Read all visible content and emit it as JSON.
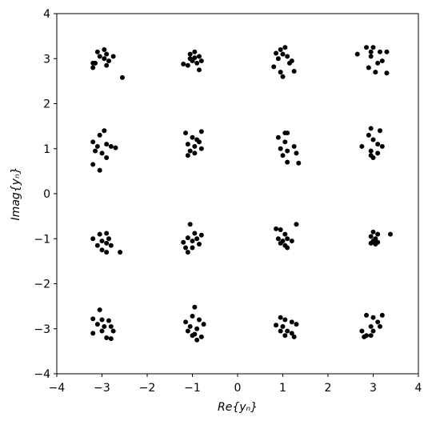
{
  "chart_data": {
    "type": "scatter",
    "xlabel": "Re{yₙ}",
    "ylabel": "Imag{yₙ}",
    "color": "#000000",
    "xlim": [
      -4,
      4
    ],
    "ylim": [
      -4,
      4
    ],
    "xticks": [
      {
        "value": -4,
        "label": "−4"
      },
      {
        "value": -3,
        "label": "−3"
      },
      {
        "value": -2,
        "label": "−2"
      },
      {
        "value": -1,
        "label": "−1"
      },
      0,
      1,
      2,
      3,
      4
    ],
    "yticks": [
      {
        "value": -4,
        "label": "−4"
      },
      {
        "value": -3,
        "label": "−3"
      },
      {
        "value": -2,
        "label": "−2"
      },
      {
        "value": -1,
        "label": "−1"
      },
      0,
      1,
      2,
      3,
      4
    ],
    "x": [
      -3.1,
      -2.95,
      -2.9,
      -3.2,
      -3.2,
      -2.85,
      -2.75,
      -2.95,
      -3.05,
      -2.9,
      -2.55,
      -3.15,
      -1.05,
      -0.95,
      -0.85,
      -1.1,
      -1.0,
      -0.9,
      -1.2,
      -0.8,
      -0.85,
      -1.05,
      -0.95,
      0.95,
      1.05,
      1.0,
      0.85,
      1.1,
      1.2,
      0.8,
      0.95,
      1.0,
      1.25,
      1.15,
      0.9,
      2.85,
      3.0,
      3.15,
      3.3,
      2.65,
      2.95,
      3.1,
      3.2,
      2.9,
      3.05,
      3.3,
      2.95,
      -3.2,
      -2.95,
      -3.05,
      -2.9,
      -3.1,
      -2.8,
      -2.7,
      -3.0,
      -2.9,
      -3.2,
      -3.05,
      -3.15,
      -1.15,
      -0.8,
      -1.0,
      -0.9,
      -1.1,
      -0.95,
      -1.05,
      -0.8,
      -1.1,
      -0.95,
      -0.85,
      1.05,
      1.1,
      0.9,
      1.05,
      1.25,
      0.95,
      1.1,
      1.3,
      1.0,
      1.1,
      1.35,
      2.95,
      3.15,
      2.9,
      3.0,
      3.1,
      2.75,
      3.2,
      2.95,
      3.1,
      3.0,
      2.95,
      -3.2,
      -3.05,
      -2.9,
      -2.85,
      -3.0,
      -2.9,
      -3.1,
      -2.8,
      -3.0,
      -2.9,
      -2.6,
      -1.05,
      -0.95,
      -0.8,
      -1.1,
      -0.9,
      -1.0,
      -1.2,
      -0.85,
      -1.15,
      -1.0,
      -1.1,
      0.85,
      0.95,
      1.3,
      1.05,
      0.9,
      1.0,
      1.1,
      1.2,
      0.95,
      1.05,
      1.1,
      3.0,
      3.1,
      3.38,
      2.95,
      3.05,
      3.0,
      3.1,
      2.95,
      3.05,
      -3.05,
      -3.2,
      -3.0,
      -2.85,
      -3.1,
      -2.95,
      -2.8,
      -3.0,
      -2.75,
      -3.2,
      -2.9,
      -2.8,
      -0.95,
      -1.0,
      -0.85,
      -1.15,
      -0.75,
      -1.05,
      -0.9,
      -1.1,
      -0.95,
      -0.8,
      -0.9,
      -1.0,
      0.95,
      1.05,
      1.2,
      0.85,
      1.0,
      1.3,
      0.95,
      1.1,
      1.2,
      1.05,
      1.25,
      2.85,
      3.2,
      3.0,
      3.1,
      3.15,
      2.95,
      2.75,
      3.0,
      2.85,
      2.95,
      2.8
    ],
    "values": [
      3.15,
      3.2,
      3.1,
      2.9,
      2.8,
      2.95,
      3.05,
      3.0,
      3.05,
      2.85,
      2.58,
      2.9,
      3.1,
      3.15,
      3.05,
      2.85,
      2.95,
      2.9,
      2.88,
      2.95,
      2.75,
      3.0,
      3.02,
      3.2,
      3.25,
      3.1,
      3.12,
      3.05,
      2.95,
      2.82,
      2.7,
      2.6,
      2.72,
      2.9,
      3.0,
      3.25,
      3.25,
      3.15,
      3.15,
      3.1,
      3.05,
      2.9,
      2.95,
      2.8,
      2.7,
      2.68,
      3.15,
      1.15,
      1.4,
      1.3,
      1.1,
      1.05,
      1.05,
      1.02,
      0.9,
      0.8,
      0.65,
      0.52,
      0.95,
      1.35,
      1.38,
      1.25,
      1.2,
      1.1,
      1.05,
      0.95,
      1.0,
      0.85,
      0.9,
      1.15,
      1.35,
      1.35,
      1.25,
      1.15,
      1.05,
      1.0,
      0.95,
      0.9,
      0.85,
      0.7,
      0.68,
      1.45,
      1.4,
      1.3,
      1.2,
      1.1,
      1.05,
      1.05,
      0.95,
      0.9,
      0.8,
      0.85,
      -1.0,
      -0.9,
      -0.88,
      -1.0,
      -1.05,
      -1.1,
      -1.15,
      -1.15,
      -1.25,
      -1.3,
      -1.3,
      -0.68,
      -0.88,
      -0.92,
      -0.98,
      -1.0,
      -1.05,
      -1.08,
      -1.12,
      -1.2,
      -1.2,
      -1.3,
      -0.78,
      -0.8,
      -0.68,
      -0.9,
      -1.0,
      -1.05,
      -1.0,
      -1.05,
      -1.1,
      -1.15,
      -1.2,
      -0.85,
      -0.9,
      -0.9,
      -0.95,
      -1.0,
      -1.05,
      -1.08,
      -1.1,
      -1.12,
      -2.58,
      -2.78,
      -2.8,
      -2.82,
      -2.9,
      -2.95,
      -2.95,
      -3.05,
      -3.05,
      -3.1,
      -3.2,
      -3.22,
      -2.52,
      -2.72,
      -2.8,
      -2.85,
      -2.9,
      -2.95,
      -3.0,
      -3.05,
      -3.12,
      -3.18,
      -3.25,
      -3.15,
      -2.75,
      -2.8,
      -2.85,
      -2.92,
      -2.95,
      -2.9,
      -3.05,
      -3.05,
      -3.1,
      -3.15,
      -3.18,
      -2.7,
      -2.7,
      -2.75,
      -2.85,
      -2.95,
      -2.95,
      -3.05,
      -3.05,
      -3.15,
      -3.15,
      -3.18
    ]
  }
}
